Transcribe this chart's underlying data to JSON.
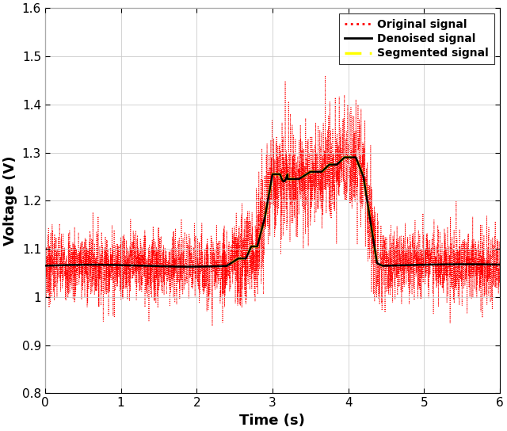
{
  "title": "",
  "xlabel": "Time (s)",
  "ylabel": "Voltage (V)",
  "xlim": [
    0,
    6
  ],
  "ylim": [
    0.8,
    1.6
  ],
  "xticks": [
    0,
    1,
    2,
    3,
    4,
    5,
    6
  ],
  "yticks": [
    0.8,
    0.9,
    1.0,
    1.1,
    1.2,
    1.3,
    1.4,
    1.5,
    1.6
  ],
  "legend_labels": [
    "Original signal",
    "Denoised signal",
    "Segmented signal"
  ],
  "original_color": "#ff0000",
  "denoised_color": "#000000",
  "segmented_color": "#ffff00",
  "figsize": [
    6.4,
    5.44
  ],
  "dpi": 100
}
